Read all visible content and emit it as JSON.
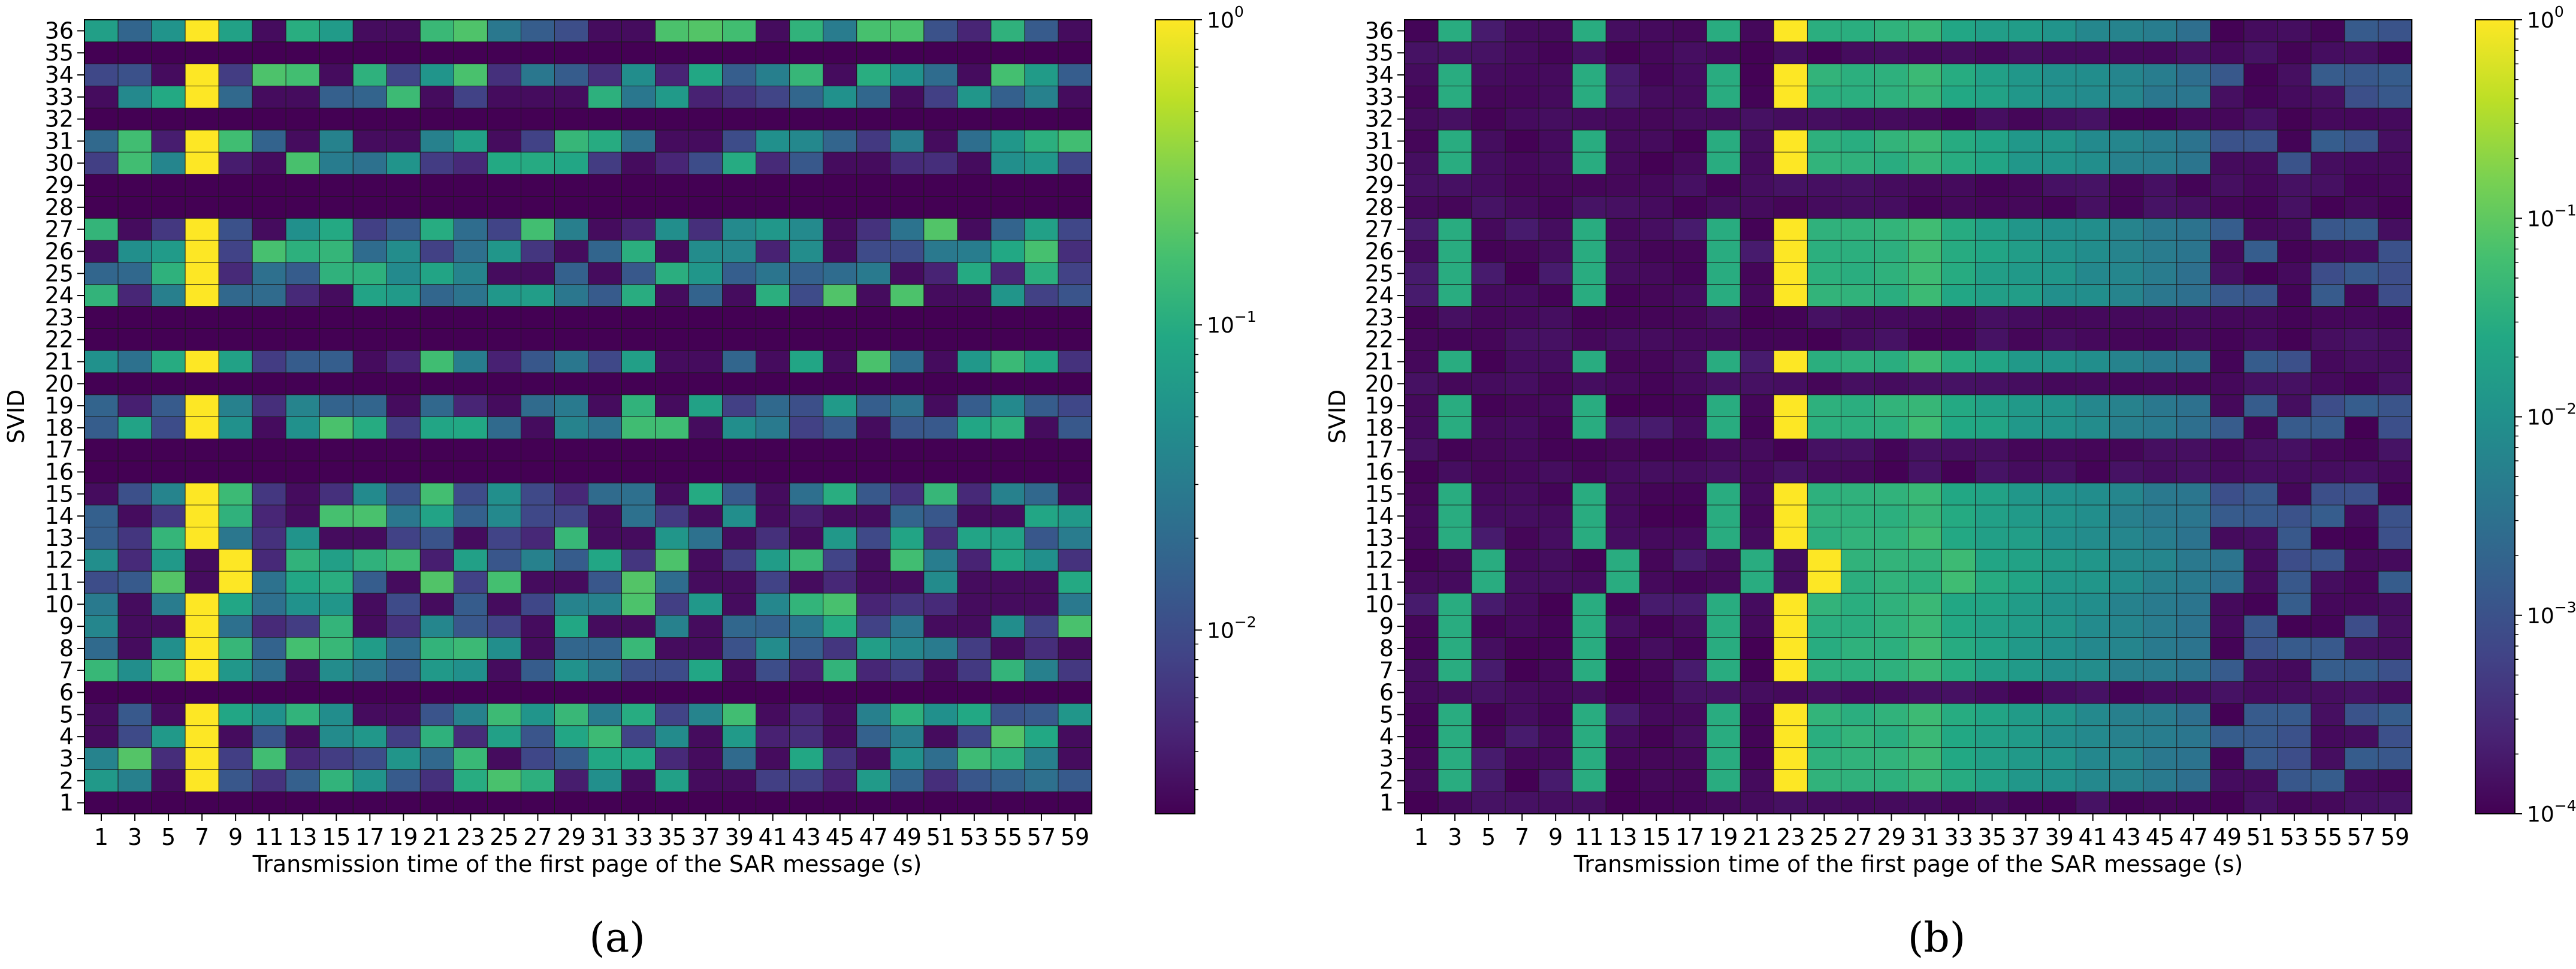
{
  "chart_data": [
    {
      "type": "heatmap",
      "panel_label": "(a)",
      "xlabel": "Transmission time of the first page of the SAR message (s)",
      "ylabel": "SVID",
      "x_ticks": [
        "1",
        "3",
        "5",
        "7",
        "9",
        "11",
        "13",
        "15",
        "17",
        "19",
        "21",
        "23",
        "25",
        "27",
        "29",
        "31",
        "33",
        "35",
        "37",
        "39",
        "41",
        "43",
        "45",
        "47",
        "49",
        "51",
        "53",
        "55",
        "57",
        "59"
      ],
      "y_ticks": [
        "1",
        "2",
        "3",
        "4",
        "5",
        "6",
        "7",
        "8",
        "9",
        "10",
        "11",
        "12",
        "13",
        "14",
        "15",
        "16",
        "17",
        "18",
        "19",
        "20",
        "21",
        "22",
        "23",
        "24",
        "25",
        "26",
        "27",
        "28",
        "29",
        "30",
        "31",
        "32",
        "33",
        "34",
        "35",
        "36"
      ],
      "colorbar": {
        "scale": "log",
        "min": 0.0025,
        "max": 1,
        "ticks": [
          {
            "base": "10",
            "exp": "0"
          },
          {
            "base": "10",
            "exp": "−1"
          },
          {
            "base": "10",
            "exp": "−2"
          }
        ],
        "colormap": "viridis"
      },
      "peak_columns_by_svid": {
        "1": [],
        "6": [],
        "16": [],
        "17": [],
        "20": [],
        "22": [],
        "23": [],
        "28": [],
        "29": [],
        "32": [],
        "35": [],
        "11": [
          "9"
        ],
        "12": [
          "9"
        ],
        "default": [
          "7"
        ]
      },
      "active_svids": [
        2,
        3,
        4,
        5,
        7,
        8,
        9,
        10,
        11,
        12,
        13,
        14,
        15,
        18,
        19,
        21,
        24,
        25,
        26,
        27,
        30,
        31,
        33,
        34,
        36
      ],
      "value_note": "Active satellites: 1.0 at peak column, mixed values ~0.003–0.2 elsewhere; inactive rows ~0.0025"
    },
    {
      "type": "heatmap",
      "panel_label": "(b)",
      "xlabel": "Transmission time of the first page of the SAR message (s)",
      "ylabel": "SVID",
      "x_ticks": [
        "1",
        "3",
        "5",
        "7",
        "9",
        "11",
        "13",
        "15",
        "17",
        "19",
        "21",
        "23",
        "25",
        "27",
        "29",
        "31",
        "33",
        "35",
        "37",
        "39",
        "41",
        "43",
        "45",
        "47",
        "49",
        "51",
        "53",
        "55",
        "57",
        "59"
      ],
      "y_ticks": [
        "1",
        "2",
        "3",
        "4",
        "5",
        "6",
        "7",
        "8",
        "9",
        "10",
        "11",
        "12",
        "13",
        "14",
        "15",
        "16",
        "17",
        "18",
        "19",
        "20",
        "21",
        "22",
        "23",
        "24",
        "25",
        "26",
        "27",
        "28",
        "29",
        "30",
        "31",
        "32",
        "33",
        "34",
        "35",
        "36"
      ],
      "colorbar": {
        "scale": "log",
        "min": 0.0001,
        "max": 1,
        "ticks": [
          {
            "base": "10",
            "exp": "0"
          },
          {
            "base": "10",
            "exp": "−1"
          },
          {
            "base": "10",
            "exp": "−2"
          },
          {
            "base": "10",
            "exp": "−3"
          },
          {
            "base": "10",
            "exp": "−4"
          }
        ],
        "colormap": "viridis"
      },
      "peak_columns_by_svid": {
        "11": [
          "25"
        ],
        "12": [
          "25"
        ],
        "default": [
          "23"
        ]
      },
      "secondary_columns": [
        "3",
        "11",
        "19"
      ],
      "secondary_columns_svid_11_12": [
        "5",
        "13",
        "21"
      ],
      "active_svids": [
        2,
        3,
        4,
        5,
        7,
        8,
        9,
        10,
        11,
        12,
        13,
        14,
        15,
        18,
        19,
        21,
        24,
        25,
        26,
        27,
        30,
        31,
        33,
        34,
        36
      ],
      "value_note": "Active satellites: 1.0 at peak column, ~0.03 at secondary columns, gradient ~0.03→0.0005 after peak; inactive ~0.0001"
    }
  ]
}
